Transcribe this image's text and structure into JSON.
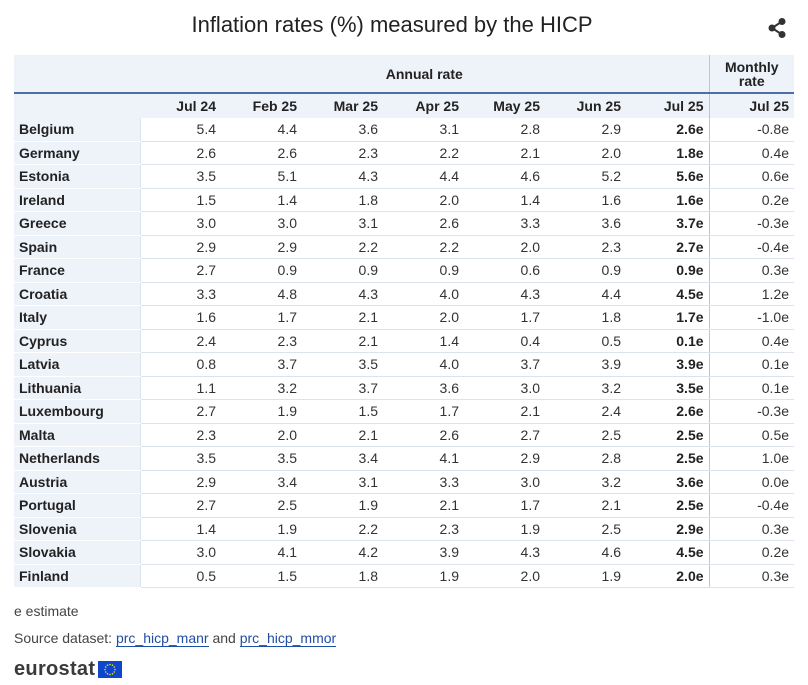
{
  "title": "Inflation rates (%) measured by the HICP",
  "share_icon": "share-icon",
  "table": {
    "group_annual": "Annual rate",
    "group_monthly": "Monthly rate",
    "columns": [
      "Jul 24",
      "Feb 25",
      "Mar 25",
      "Apr 25",
      "May 25",
      "Jun 25",
      "Jul 25",
      "Jul 25"
    ],
    "rows": [
      {
        "country": "Belgium",
        "values": [
          "5.4",
          "4.4",
          "3.6",
          "3.1",
          "2.8",
          "2.9",
          "2.6e",
          "-0.8e"
        ]
      },
      {
        "country": "Germany",
        "values": [
          "2.6",
          "2.6",
          "2.3",
          "2.2",
          "2.1",
          "2.0",
          "1.8e",
          "0.4e"
        ]
      },
      {
        "country": "Estonia",
        "values": [
          "3.5",
          "5.1",
          "4.3",
          "4.4",
          "4.6",
          "5.2",
          "5.6e",
          "0.6e"
        ]
      },
      {
        "country": "Ireland",
        "values": [
          "1.5",
          "1.4",
          "1.8",
          "2.0",
          "1.4",
          "1.6",
          "1.6e",
          "0.2e"
        ]
      },
      {
        "country": "Greece",
        "values": [
          "3.0",
          "3.0",
          "3.1",
          "2.6",
          "3.3",
          "3.6",
          "3.7e",
          "-0.3e"
        ]
      },
      {
        "country": "Spain",
        "values": [
          "2.9",
          "2.9",
          "2.2",
          "2.2",
          "2.0",
          "2.3",
          "2.7e",
          "-0.4e"
        ]
      },
      {
        "country": "France",
        "values": [
          "2.7",
          "0.9",
          "0.9",
          "0.9",
          "0.6",
          "0.9",
          "0.9e",
          "0.3e"
        ]
      },
      {
        "country": "Croatia",
        "values": [
          "3.3",
          "4.8",
          "4.3",
          "4.0",
          "4.3",
          "4.4",
          "4.5e",
          "1.2e"
        ]
      },
      {
        "country": "Italy",
        "values": [
          "1.6",
          "1.7",
          "2.1",
          "2.0",
          "1.7",
          "1.8",
          "1.7e",
          "-1.0e"
        ]
      },
      {
        "country": "Cyprus",
        "values": [
          "2.4",
          "2.3",
          "2.1",
          "1.4",
          "0.4",
          "0.5",
          "0.1e",
          "0.4e"
        ]
      },
      {
        "country": "Latvia",
        "values": [
          "0.8",
          "3.7",
          "3.5",
          "4.0",
          "3.7",
          "3.9",
          "3.9e",
          "0.1e"
        ]
      },
      {
        "country": "Lithuania",
        "values": [
          "1.1",
          "3.2",
          "3.7",
          "3.6",
          "3.0",
          "3.2",
          "3.5e",
          "0.1e"
        ]
      },
      {
        "country": "Luxembourg",
        "values": [
          "2.7",
          "1.9",
          "1.5",
          "1.7",
          "2.1",
          "2.4",
          "2.6e",
          "-0.3e"
        ]
      },
      {
        "country": "Malta",
        "values": [
          "2.3",
          "2.0",
          "2.1",
          "2.6",
          "2.7",
          "2.5",
          "2.5e",
          "0.5e"
        ]
      },
      {
        "country": "Netherlands",
        "values": [
          "3.5",
          "3.5",
          "3.4",
          "4.1",
          "2.9",
          "2.8",
          "2.5e",
          "1.0e"
        ]
      },
      {
        "country": "Austria",
        "values": [
          "2.9",
          "3.4",
          "3.1",
          "3.3",
          "3.0",
          "3.2",
          "3.6e",
          "0.0e"
        ]
      },
      {
        "country": "Portugal",
        "values": [
          "2.7",
          "2.5",
          "1.9",
          "2.1",
          "1.7",
          "2.1",
          "2.5e",
          "-0.4e"
        ]
      },
      {
        "country": "Slovenia",
        "values": [
          "1.4",
          "1.9",
          "2.2",
          "2.3",
          "1.9",
          "2.5",
          "2.9e",
          "0.3e"
        ]
      },
      {
        "country": "Slovakia",
        "values": [
          "3.0",
          "4.1",
          "4.2",
          "3.9",
          "4.3",
          "4.6",
          "4.5e",
          "0.2e"
        ]
      },
      {
        "country": "Finland",
        "values": [
          "0.5",
          "1.5",
          "1.8",
          "1.9",
          "2.0",
          "1.9",
          "2.0e",
          "0.3e"
        ]
      }
    ]
  },
  "footnote": "e estimate",
  "source": {
    "prefix": "Source dataset: ",
    "link1": "prc_hicp_manr",
    "conjunction": " and ",
    "link2": "prc_hicp_mmor"
  },
  "logo": {
    "text": "eurostat",
    "icon": "eu-flag-icon",
    "flag_color": "#0e47cb",
    "star_color": "#ffdd00"
  },
  "colors": {
    "header_bg": "#eef2f9",
    "accent_line": "#4f6ea8",
    "link": "#1f4ea6"
  }
}
